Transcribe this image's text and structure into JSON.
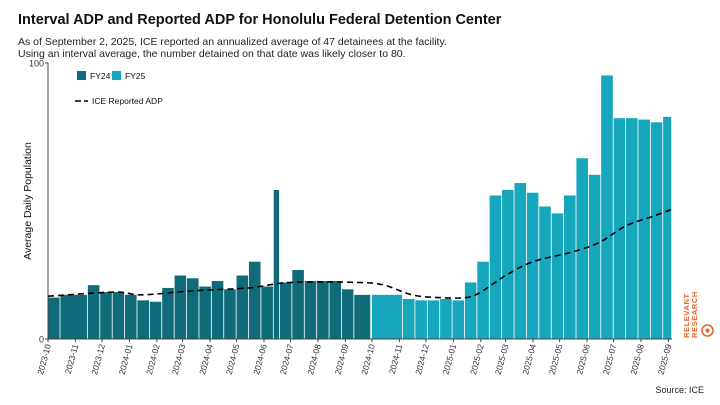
{
  "header": {
    "title": "Interval ADP and Reported ADP for Honolulu Federal Detention Center",
    "subtitle_line1": "As of September 2, 2025, ICE reported an annualized average of 47 detainees at the facility.",
    "subtitle_line2": "Using an interval average, the number detained on that date was likely closer to 80."
  },
  "footer": {
    "source": "Source: ICE",
    "brand_line1": "RELEVANT",
    "brand_line2": "RESEARCH"
  },
  "colors": {
    "fy24": "#0f6b7a",
    "fy25": "#17a7bd",
    "line": "#000000",
    "axis": "#444444",
    "brand": "#e8642c"
  },
  "chart_data": {
    "type": "bar",
    "ylabel": "Average Daily Population",
    "ylim": [
      0,
      100
    ],
    "y_ticks": [
      0,
      100
    ],
    "x_tick_labels": [
      "2023-10",
      "2023-11",
      "2023-12",
      "2024-01",
      "2024-02",
      "2024-03",
      "2024-04",
      "2024-05",
      "2024-06",
      "2024-07",
      "2024-08",
      "2024-09",
      "2024-10",
      "2024-11",
      "2024-12",
      "2025-01",
      "2025-02",
      "2025-03",
      "2025-04",
      "2025-05",
      "2025-06",
      "2025-07",
      "2025-08",
      "2025-09"
    ],
    "xlim": [
      "2023-10-01",
      "2025-09-05"
    ],
    "grid": false,
    "legend_position": "top-left",
    "series": [
      {
        "name": "FY24",
        "color": "#0f6b7a",
        "bars": [
          {
            "start": "2023-10-01",
            "end": "2023-10-15",
            "value": 15
          },
          {
            "start": "2023-10-15",
            "end": "2023-11-15",
            "value": 16
          },
          {
            "start": "2023-11-15",
            "end": "2023-11-29",
            "value": 19.5
          },
          {
            "start": "2023-11-29",
            "end": "2023-12-13",
            "value": 17
          },
          {
            "start": "2023-12-13",
            "end": "2023-12-27",
            "value": 17
          },
          {
            "start": "2023-12-27",
            "end": "2024-01-10",
            "value": 16
          },
          {
            "start": "2024-01-10",
            "end": "2024-01-24",
            "value": 14
          },
          {
            "start": "2024-01-24",
            "end": "2024-02-07",
            "value": 13.5
          },
          {
            "start": "2024-02-07",
            "end": "2024-02-21",
            "value": 18.5
          },
          {
            "start": "2024-02-21",
            "end": "2024-03-06",
            "value": 23
          },
          {
            "start": "2024-03-06",
            "end": "2024-03-20",
            "value": 22
          },
          {
            "start": "2024-03-20",
            "end": "2024-04-03",
            "value": 19
          },
          {
            "start": "2024-04-03",
            "end": "2024-04-17",
            "value": 21
          },
          {
            "start": "2024-04-17",
            "end": "2024-05-01",
            "value": 18
          },
          {
            "start": "2024-05-01",
            "end": "2024-05-15",
            "value": 23
          },
          {
            "start": "2024-05-15",
            "end": "2024-05-29",
            "value": 28
          },
          {
            "start": "2024-05-29",
            "end": "2024-06-12",
            "value": 19
          },
          {
            "start": "2024-06-12",
            "end": "2024-06-19",
            "value": 54
          },
          {
            "start": "2024-06-19",
            "end": "2024-07-03",
            "value": 20.5
          },
          {
            "start": "2024-07-03",
            "end": "2024-07-17",
            "value": 25
          },
          {
            "start": "2024-07-17",
            "end": "2024-07-31",
            "value": 21
          },
          {
            "start": "2024-07-31",
            "end": "2024-08-14",
            "value": 21
          },
          {
            "start": "2024-08-14",
            "end": "2024-08-28",
            "value": 21
          },
          {
            "start": "2024-08-28",
            "end": "2024-09-11",
            "value": 18
          },
          {
            "start": "2024-09-11",
            "end": "2024-09-30",
            "value": 16
          }
        ]
      },
      {
        "name": "FY25",
        "color": "#17a7bd",
        "bars": [
          {
            "start": "2024-10-01",
            "end": "2024-11-05",
            "value": 16
          },
          {
            "start": "2024-11-05",
            "end": "2024-11-19",
            "value": 14.5
          },
          {
            "start": "2024-11-19",
            "end": "2024-12-03",
            "value": 14
          },
          {
            "start": "2024-12-03",
            "end": "2024-12-17",
            "value": 14
          },
          {
            "start": "2024-12-17",
            "end": "2024-12-31",
            "value": 14.5
          },
          {
            "start": "2024-12-31",
            "end": "2025-01-14",
            "value": 14
          },
          {
            "start": "2025-01-14",
            "end": "2025-01-28",
            "value": 20.5
          },
          {
            "start": "2025-01-28",
            "end": "2025-02-11",
            "value": 28
          },
          {
            "start": "2025-02-11",
            "end": "2025-02-25",
            "value": 52
          },
          {
            "start": "2025-02-25",
            "end": "2025-03-11",
            "value": 54
          },
          {
            "start": "2025-03-11",
            "end": "2025-03-25",
            "value": 56.5
          },
          {
            "start": "2025-03-25",
            "end": "2025-04-08",
            "value": 53
          },
          {
            "start": "2025-04-08",
            "end": "2025-04-22",
            "value": 48
          },
          {
            "start": "2025-04-22",
            "end": "2025-05-06",
            "value": 45.5
          },
          {
            "start": "2025-05-06",
            "end": "2025-05-20",
            "value": 52
          },
          {
            "start": "2025-05-20",
            "end": "2025-06-03",
            "value": 65.5
          },
          {
            "start": "2025-06-03",
            "end": "2025-06-17",
            "value": 59.5
          },
          {
            "start": "2025-06-17",
            "end": "2025-07-01",
            "value": 95.5
          },
          {
            "start": "2025-07-01",
            "end": "2025-07-15",
            "value": 80
          },
          {
            "start": "2025-07-15",
            "end": "2025-07-29",
            "value": 80
          },
          {
            "start": "2025-07-29",
            "end": "2025-08-12",
            "value": 79.5
          },
          {
            "start": "2025-08-12",
            "end": "2025-08-26",
            "value": 78.5
          },
          {
            "start": "2025-08-26",
            "end": "2025-09-05",
            "value": 80.5
          }
        ]
      }
    ],
    "line": {
      "name": "ICE Reported ADP",
      "style": "dashed",
      "points": [
        {
          "x": "2023-10-01",
          "y": 15.5
        },
        {
          "x": "2023-12-15",
          "y": 17
        },
        {
          "x": "2024-01-15",
          "y": 16
        },
        {
          "x": "2024-03-15",
          "y": 17.5
        },
        {
          "x": "2024-05-15",
          "y": 18.5
        },
        {
          "x": "2024-07-01",
          "y": 20.5
        },
        {
          "x": "2024-09-15",
          "y": 20.5
        },
        {
          "x": "2024-10-15",
          "y": 19.5
        },
        {
          "x": "2024-11-15",
          "y": 16
        },
        {
          "x": "2024-12-15",
          "y": 15
        },
        {
          "x": "2025-01-15",
          "y": 15
        },
        {
          "x": "2025-02-01",
          "y": 17
        },
        {
          "x": "2025-03-01",
          "y": 23
        },
        {
          "x": "2025-04-01",
          "y": 28
        },
        {
          "x": "2025-05-15",
          "y": 31.5
        },
        {
          "x": "2025-06-15",
          "y": 35
        },
        {
          "x": "2025-07-15",
          "y": 41
        },
        {
          "x": "2025-08-15",
          "y": 44.5
        },
        {
          "x": "2025-09-05",
          "y": 47
        }
      ]
    }
  }
}
